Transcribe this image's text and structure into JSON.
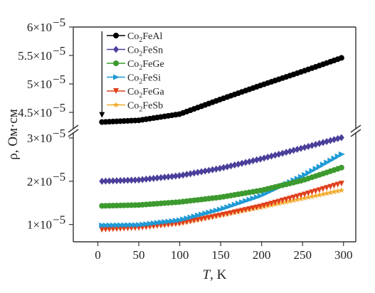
{
  "chart_data": {
    "type": "scatter",
    "xlabel_italic": "T",
    "xlabel_rest": ", K",
    "ylabel": "ρ, Ом·см",
    "x_ticks": [
      0,
      50,
      100,
      150,
      200,
      250,
      300
    ],
    "xlim": [
      -30,
      315
    ],
    "y_break": true,
    "upper_panel": {
      "ylim": [
        4.3e-05,
        6e-05
      ],
      "ticks": [
        {
          "value": 4.5e-05,
          "mant": "4.5×10",
          "exp": "−5"
        },
        {
          "value": 5e-05,
          "mant": "5×10",
          "exp": "−5"
        },
        {
          "value": 5.5e-05,
          "mant": "5.5×10",
          "exp": "−5"
        },
        {
          "value": 6e-05,
          "mant": "6×10",
          "exp": "−5"
        }
      ]
    },
    "lower_panel": {
      "ylim": [
        6e-06,
        3e-05
      ],
      "ticks": [
        {
          "value": 1e-05,
          "mant": "1×10",
          "exp": "−5"
        },
        {
          "value": 2e-05,
          "mant": "2×10",
          "exp": "−5"
        },
        {
          "value": 3e-05,
          "mant": "3×10",
          "exp": "−5"
        }
      ]
    },
    "x_samples": [
      5,
      50,
      100,
      150,
      200,
      250,
      300
    ],
    "series": [
      {
        "name": "Co2FeAl",
        "legend_base": "Co",
        "legend_sub": "2",
        "legend_rest": "FeAl",
        "color": "#000000",
        "marker": "circle",
        "panel": "upper",
        "values": [
          4.33e-05,
          4.36e-05,
          4.47e-05,
          4.73e-05,
          4.98e-05,
          5.22e-05,
          5.47e-05
        ]
      },
      {
        "name": "Co2FeSn",
        "legend_base": "Co",
        "legend_sub": "2",
        "legend_rest": "FeSn",
        "color": "#4a3f9a",
        "marker": "diamond",
        "panel": "lower",
        "values": [
          2e-05,
          2.03e-05,
          2.13e-05,
          2.3e-05,
          2.52e-05,
          2.77e-05,
          3.02e-05
        ]
      },
      {
        "name": "Co2FeGe",
        "legend_base": "Co",
        "legend_sub": "2",
        "legend_rest": "FeGe",
        "color": "#3c9a2e",
        "marker": "circle",
        "panel": "lower",
        "values": [
          1.43e-05,
          1.45e-05,
          1.52e-05,
          1.63e-05,
          1.79e-05,
          2.02e-05,
          2.33e-05
        ]
      },
      {
        "name": "Co2FeSi",
        "legend_base": "Co",
        "legend_sub": "2",
        "legend_rest": "FeSi",
        "color": "#1f9ad6",
        "marker": "triangle-right",
        "panel": "lower",
        "values": [
          9.8e-06,
          9.9e-06,
          1.1e-05,
          1.35e-05,
          1.67e-05,
          2.12e-05,
          2.65e-05
        ]
      },
      {
        "name": "Co2FeGa",
        "legend_base": "Co",
        "legend_sub": "2",
        "legend_rest": "FeGa",
        "color": "#e0401c",
        "marker": "triangle-down",
        "panel": "lower",
        "values": [
          8.8e-06,
          9.2e-06,
          1.02e-05,
          1.21e-05,
          1.42e-05,
          1.68e-05,
          1.96e-05
        ]
      },
      {
        "name": "Co2FeSb",
        "legend_base": "Co",
        "legend_sub": "2",
        "legend_rest": "FeSb",
        "color": "#f2a928",
        "marker": "star",
        "panel": "lower",
        "values": [
          9.2e-06,
          9.7e-06,
          1.04e-05,
          1.22e-05,
          1.4e-05,
          1.6e-05,
          1.8e-05
        ]
      }
    ]
  }
}
